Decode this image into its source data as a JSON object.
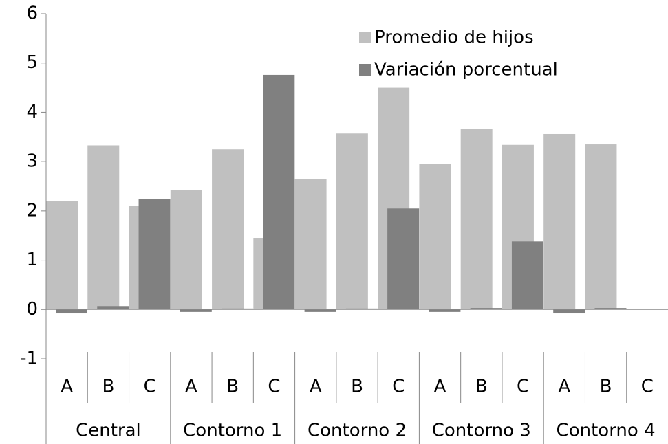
{
  "chart_data": {
    "type": "bar",
    "categories": [
      "A",
      "B",
      "C",
      "A",
      "B",
      "C",
      "A",
      "B",
      "C",
      "A",
      "B",
      "C",
      "A",
      "B",
      "C"
    ],
    "category_groups": [
      "Central",
      "Contorno 1",
      "Contorno 2",
      "Contorno 3",
      "Contorno 4"
    ],
    "series": [
      {
        "name": "Promedio de hijos",
        "color": "#c0c0c0",
        "values": [
          2.2,
          3.33,
          2.1,
          2.43,
          3.25,
          1.44,
          2.65,
          3.57,
          4.5,
          2.95,
          3.67,
          3.34,
          3.56,
          3.35,
          null
        ]
      },
      {
        "name": "Variación porcentual",
        "color": "#808080",
        "values": [
          -0.08,
          0.07,
          2.24,
          -0.05,
          0.02,
          4.76,
          -0.05,
          0.02,
          2.05,
          -0.05,
          0.03,
          1.38,
          -0.08,
          0.03,
          null
        ]
      }
    ],
    "ylim": [
      -1,
      6
    ],
    "yticks": [
      -1,
      0,
      1,
      2,
      3,
      4,
      5,
      6
    ],
    "legend": "upper right"
  }
}
